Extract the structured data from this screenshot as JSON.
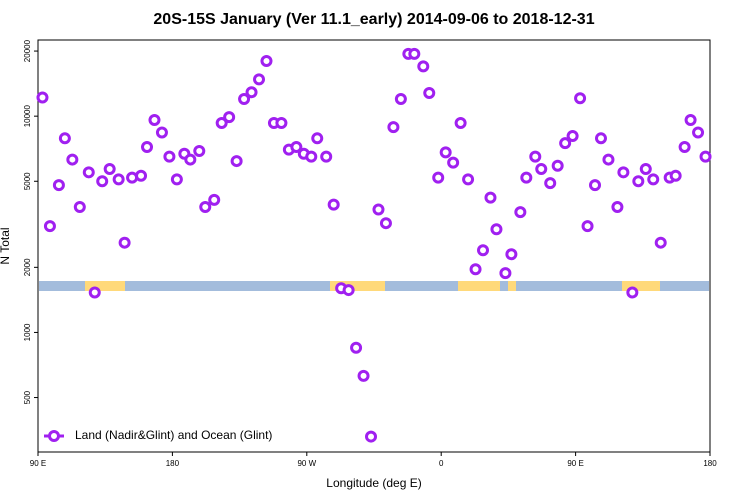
{
  "chart_data": {
    "type": "scatter",
    "title": "20S-15S January (Ver 11.1_early)   2014-09-06 to 2018-12-31",
    "xlabel": "Longitude (deg E)",
    "ylabel": "N Total",
    "xlim": [
      90,
      540
    ],
    "ylim": [
      280,
      22500
    ],
    "log_y": true,
    "legend": "bottom left",
    "xticks": [
      {
        "value": 90,
        "label": "90 E"
      },
      180,
      {
        "value": 270,
        "label": "90 W"
      },
      {
        "value": 360,
        "label": "0"
      },
      {
        "value": 450,
        "label": "90 E"
      },
      {
        "value": 540,
        "label": "180"
      }
    ],
    "yticks": [
      500,
      1000,
      2000,
      5000,
      10000,
      20000
    ],
    "series": [
      {
        "name": "Land (Nadir&Glint) and Ocean (Glint)",
        "color": "#a020f0",
        "x": [
          93,
          98,
          104,
          108,
          113,
          118,
          124,
          128,
          133,
          138,
          144,
          148,
          153,
          159,
          163,
          168,
          173,
          178,
          183,
          188,
          192,
          198,
          202,
          208,
          213,
          218,
          223,
          228,
          233,
          238,
          243,
          248,
          253,
          258,
          263,
          268,
          273,
          277,
          283,
          288,
          293,
          298,
          303,
          308,
          313,
          318,
          323,
          328,
          333,
          338,
          342,
          348,
          352,
          358,
          363,
          368,
          373,
          378,
          383,
          388,
          393,
          397,
          403,
          407,
          413,
          417,
          423,
          427,
          433,
          438,
          443,
          448,
          453,
          458,
          463,
          467,
          472,
          478,
          482,
          488,
          492,
          497,
          502,
          507,
          513,
          517,
          523,
          527,
          532,
          537
        ],
        "values": [
          12200,
          3100,
          4800,
          7900,
          6300,
          3800,
          5500,
          1530,
          5000,
          5700,
          5100,
          2600,
          5200,
          5300,
          7200,
          9600,
          8400,
          6500,
          5100,
          6700,
          6300,
          6900,
          3800,
          4100,
          9300,
          9900,
          6200,
          12000,
          12900,
          14800,
          18000,
          9300,
          9300,
          7000,
          7200,
          6700,
          6500,
          7900,
          6500,
          3900,
          1600,
          1570,
          850,
          630,
          330,
          3700,
          3200,
          8900,
          12000,
          19400,
          19400,
          17000,
          12800,
          5200,
          6800,
          6100,
          9300,
          5100,
          1960,
          2400,
          4200,
          3000,
          1880,
          2300,
          3600,
          5200,
          6500,
          5700,
          4900,
          5900,
          7500,
          8100,
          12100,
          3100,
          4800,
          7900,
          6300,
          3800,
          5500,
          1530,
          5000,
          5700,
          5100,
          2600,
          5200,
          5300,
          7200,
          9600,
          8400,
          6500
        ]
      }
    ]
  }
}
